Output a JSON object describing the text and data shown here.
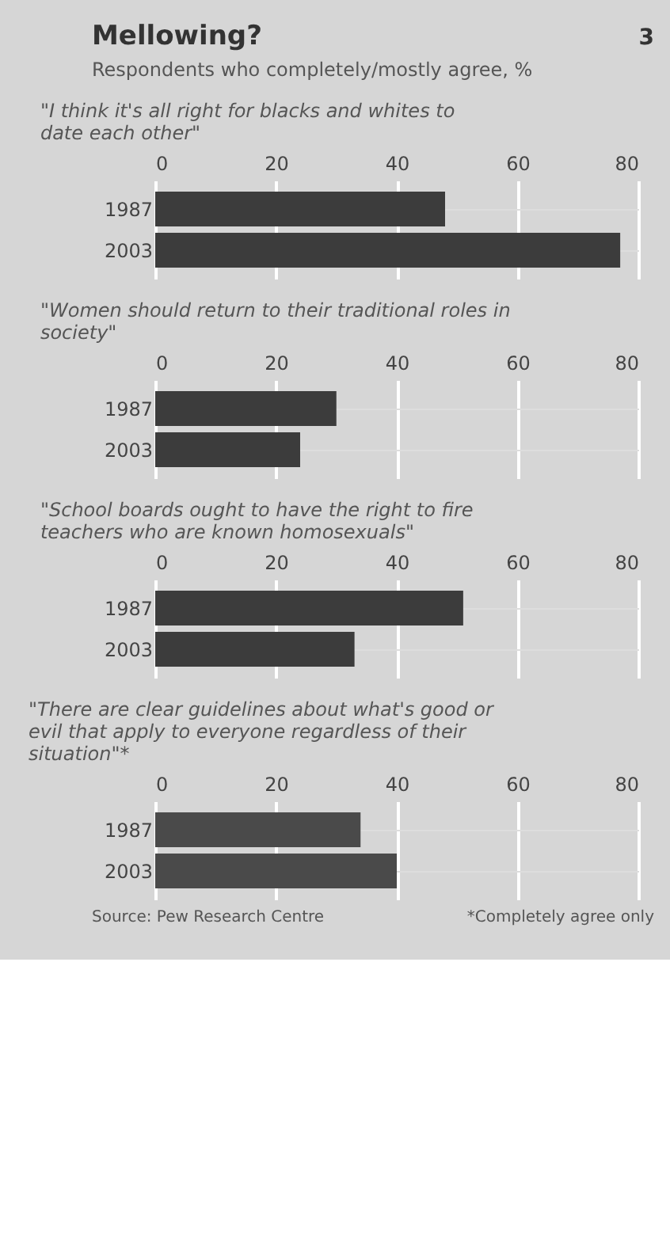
{
  "chart_data": [
    {
      "type": "bar",
      "orientation": "horizontal",
      "title": "Mellowing?",
      "subtitle": "\"I think it's all right for blacks and whites to date each other\"",
      "annotations": [
        "3",
        "Respondents who completely/mostly agree, %"
      ],
      "categories": [
        "1987",
        "2003"
      ],
      "values": [
        48,
        77
      ],
      "color": "#3c3c3c",
      "xlim": [
        0,
        80
      ],
      "xticks": [
        0,
        20,
        40,
        60,
        80
      ],
      "grid": "x"
    },
    {
      "type": "bar",
      "orientation": "horizontal",
      "subtitle": "\"Women should return to their traditional roles in society\"",
      "categories": [
        "1987",
        "2003"
      ],
      "values": [
        30,
        24
      ],
      "color": "#3c3c3c",
      "xlim": [
        0,
        80
      ],
      "xticks": [
        0,
        20,
        40,
        60,
        80
      ],
      "grid": "x"
    },
    {
      "type": "bar",
      "orientation": "horizontal",
      "subtitle": "\"School boards ought to have the right to fire teachers who are known homosexuals\"",
      "categories": [
        "1987",
        "2003"
      ],
      "values": [
        51,
        33
      ],
      "color": "#3c3c3c",
      "xlim": [
        0,
        80
      ],
      "xticks": [
        0,
        20,
        40,
        60,
        80
      ],
      "grid": "x"
    },
    {
      "type": "bar",
      "orientation": "horizontal",
      "subtitle": "\"There are clear guidelines about what's good or evil that apply to everyone regardless of their situation\"*",
      "annotations": [
        "Source: Pew Research Centre",
        "*Completely agree only"
      ],
      "categories": [
        "1987",
        "2003"
      ],
      "values": [
        34,
        40
      ],
      "color": "#4a4a4a",
      "xlim": [
        0,
        80
      ],
      "xticks": [
        0,
        20,
        40,
        60,
        80
      ],
      "grid": "x"
    }
  ]
}
